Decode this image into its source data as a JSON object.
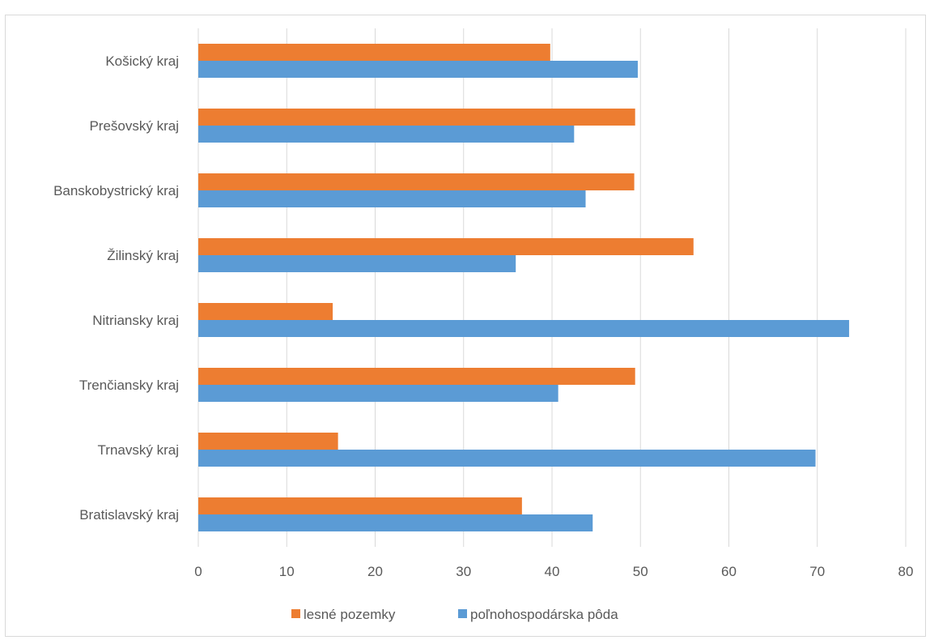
{
  "chart_data": {
    "type": "bar",
    "orientation": "horizontal",
    "title": "",
    "xlabel": "",
    "ylabel": "",
    "xlim": [
      0,
      80
    ],
    "xticks": [
      0,
      10,
      20,
      30,
      40,
      50,
      60,
      70,
      80
    ],
    "grid": "vertical",
    "legend_position": "bottom",
    "categories": [
      "Košický kraj",
      "Prešovský kraj",
      "Banskobystrický kraj",
      "Žilinský kraj",
      "Nitriansky kraj",
      "Trenčiansky kraj",
      "Trnavský kraj",
      "Bratislavský kraj"
    ],
    "series": [
      {
        "name": "lesné pozemky",
        "color": "#ED7D31",
        "values": [
          39.8,
          49.4,
          49.3,
          56.0,
          15.2,
          49.4,
          15.8,
          36.6
        ]
      },
      {
        "name": "poľnohospodárska pôda",
        "color": "#5B9BD5",
        "values": [
          49.7,
          42.5,
          43.8,
          35.9,
          73.6,
          40.7,
          69.8,
          44.6
        ]
      }
    ]
  }
}
